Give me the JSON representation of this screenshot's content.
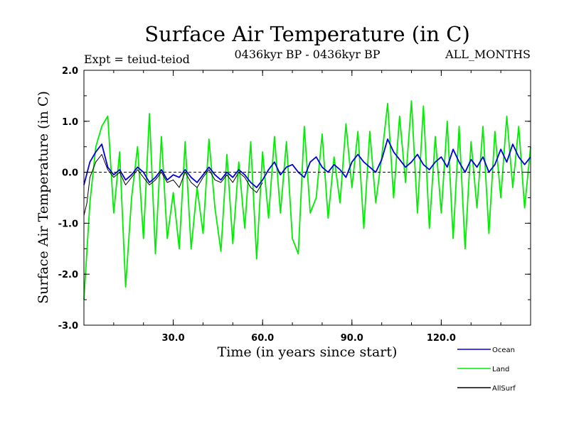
{
  "chart_data": {
    "type": "line",
    "title": "Surface Air Temperature (in C)",
    "subtitle_left": "Expt = teiud-teiod",
    "subtitle_center": "0436kyr BP - 0436kyr BP",
    "subtitle_right": "ALL_MONTHS",
    "xlabel": "Time (in years since start)",
    "ylabel": "Surface Air Temperature (in C)",
    "xlim": [
      0,
      150
    ],
    "ylim": [
      -3.0,
      2.0
    ],
    "x_ticks": [
      {
        "value": 30,
        "label": "30.0"
      },
      {
        "value": 60,
        "label": "60.0"
      },
      {
        "value": 90,
        "label": "90.0"
      },
      {
        "value": 120,
        "label": "120.0"
      }
    ],
    "y_ticks": [
      {
        "value": 2.0,
        "label": "2.0"
      },
      {
        "value": 1.0,
        "label": "1.0"
      },
      {
        "value": 0.0,
        "label": "0.0"
      },
      {
        "value": -1.0,
        "label": "-1.0"
      },
      {
        "value": -2.0,
        "label": "-2.0"
      },
      {
        "value": -3.0,
        "label": "-3.0"
      }
    ],
    "zero_line": true,
    "legend_position": "bottom-right",
    "series": [
      {
        "name": "Land",
        "color": "#00ee00",
        "x": [
          0,
          2,
          4,
          6,
          8,
          10,
          12,
          14,
          16,
          18,
          20,
          22,
          24,
          26,
          28,
          30,
          32,
          34,
          36,
          38,
          40,
          42,
          44,
          46,
          48,
          50,
          52,
          54,
          56,
          58,
          60,
          62,
          64,
          66,
          68,
          70,
          72,
          74,
          76,
          78,
          80,
          82,
          84,
          86,
          88,
          90,
          92,
          94,
          96,
          98,
          100,
          102,
          104,
          106,
          108,
          110,
          112,
          114,
          116,
          118,
          120,
          122,
          124,
          126,
          128,
          130,
          132,
          134,
          136,
          138,
          140,
          142,
          144,
          146,
          148,
          150
        ],
        "values": [
          -2.5,
          -0.6,
          0.5,
          0.9,
          1.1,
          -0.8,
          0.4,
          -2.25,
          -0.5,
          0.5,
          -1.3,
          1.15,
          -1.6,
          0.7,
          -1.3,
          -0.4,
          -1.5,
          0.6,
          -1.5,
          -0.3,
          -1.2,
          0.65,
          -0.7,
          -1.55,
          0.35,
          -1.4,
          0.2,
          -1.1,
          0.6,
          -1.7,
          0.4,
          -0.9,
          0.7,
          -0.8,
          0.6,
          -1.3,
          -1.6,
          0.9,
          -0.8,
          -0.5,
          0.75,
          -0.9,
          0.3,
          -0.6,
          0.95,
          -0.3,
          0.8,
          -1.1,
          0.8,
          -0.6,
          0.3,
          1.35,
          -0.5,
          1.1,
          -0.2,
          1.4,
          -0.8,
          1.3,
          -1.1,
          0.7,
          -0.8,
          1.0,
          -1.3,
          0.9,
          -1.5,
          0.6,
          -0.7,
          0.9,
          -1.2,
          0.8,
          -0.5,
          1.1,
          -0.3,
          0.9,
          -0.7,
          0.5
        ]
      },
      {
        "name": "Ocean",
        "color": "#0000dd",
        "x": [
          0,
          2,
          4,
          6,
          8,
          10,
          12,
          14,
          16,
          18,
          20,
          22,
          24,
          26,
          28,
          30,
          32,
          34,
          36,
          38,
          40,
          42,
          44,
          46,
          48,
          50,
          52,
          54,
          56,
          58,
          60,
          62,
          64,
          66,
          68,
          70,
          72,
          74,
          76,
          78,
          80,
          82,
          84,
          86,
          88,
          90,
          92,
          94,
          96,
          98,
          100,
          102,
          104,
          106,
          108,
          110,
          112,
          114,
          116,
          118,
          120,
          122,
          124,
          126,
          128,
          130,
          132,
          134,
          136,
          138,
          140,
          142,
          144,
          146,
          148,
          150
        ],
        "values": [
          -0.25,
          0.2,
          0.4,
          0.55,
          0.1,
          -0.05,
          0.05,
          -0.15,
          -0.05,
          0.1,
          0.0,
          -0.2,
          -0.1,
          0.05,
          -0.15,
          -0.05,
          -0.1,
          0.05,
          -0.1,
          -0.2,
          -0.05,
          0.1,
          -0.05,
          -0.15,
          0.0,
          -0.1,
          0.05,
          -0.05,
          -0.2,
          -0.3,
          -0.15,
          0.05,
          0.2,
          -0.05,
          0.1,
          0.15,
          0.0,
          -0.1,
          0.2,
          0.3,
          0.1,
          0.0,
          0.15,
          0.05,
          -0.1,
          0.2,
          0.35,
          0.2,
          0.1,
          0.0,
          0.25,
          0.65,
          0.4,
          0.25,
          0.1,
          0.2,
          0.35,
          0.15,
          0.05,
          0.2,
          0.3,
          0.1,
          0.45,
          0.2,
          0.0,
          0.25,
          0.1,
          0.3,
          0.0,
          0.15,
          0.45,
          0.2,
          0.55,
          0.3,
          0.15,
          0.3
        ]
      },
      {
        "name": "AllSurf",
        "color": "#000000",
        "x": [
          0,
          1,
          2,
          4,
          6,
          8,
          10,
          12,
          14,
          16,
          18,
          20,
          22,
          24,
          26,
          28,
          30,
          32,
          34,
          36,
          38,
          40,
          42,
          44,
          46,
          48,
          50,
          52,
          54,
          56,
          58,
          60
        ],
        "values": [
          -0.85,
          -0.6,
          -0.1,
          0.2,
          0.35,
          0.05,
          -0.1,
          0.0,
          -0.25,
          -0.1,
          0.05,
          -0.1,
          -0.25,
          -0.15,
          0.0,
          -0.2,
          -0.15,
          -0.3,
          0.0,
          -0.2,
          -0.3,
          -0.1,
          0.05,
          -0.15,
          -0.2,
          -0.05,
          -0.2,
          0.0,
          -0.1,
          -0.3,
          -0.4,
          -0.2
        ]
      }
    ]
  }
}
